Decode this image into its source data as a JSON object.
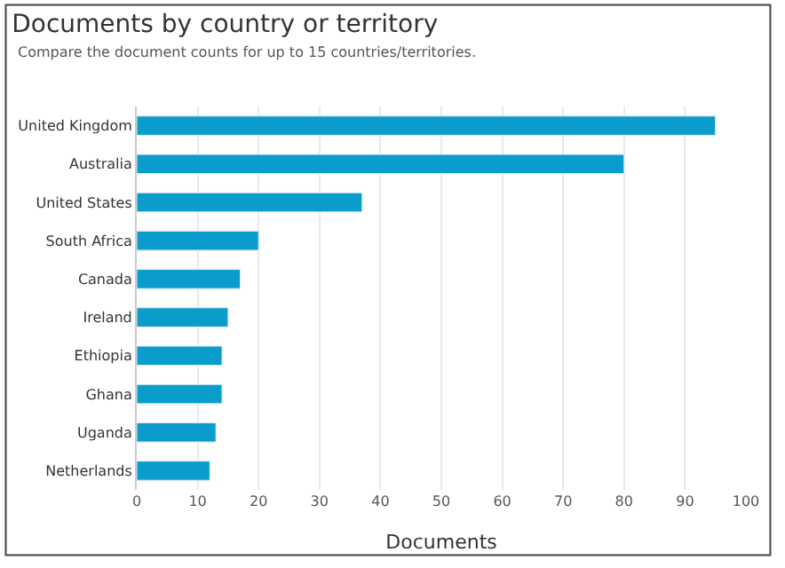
{
  "chart_data": {
    "type": "bar",
    "orientation": "horizontal",
    "title": "Documents by country or territory",
    "subtitle": "Compare the document counts for up to 15 countries/territories.",
    "xlabel": "Documents",
    "categories": [
      "United Kingdom",
      "Australia",
      "United States",
      "South Africa",
      "Canada",
      "Ireland",
      "Ethiopia",
      "Ghana",
      "Uganda",
      "Netherlands"
    ],
    "values": [
      95,
      80,
      37,
      20,
      17,
      15,
      14,
      14,
      13,
      12
    ],
    "color": "#0a9dcc",
    "xlim": [
      0,
      100
    ],
    "xticks": [
      0,
      10,
      20,
      30,
      40,
      50,
      60,
      70,
      80,
      90,
      100
    ],
    "grid": "x",
    "legend": false
  }
}
